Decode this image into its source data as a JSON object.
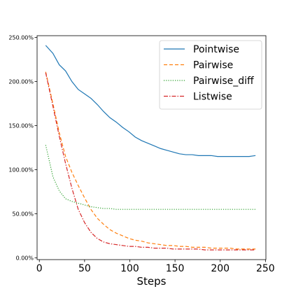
{
  "chart_data": {
    "type": "line",
    "title": "",
    "xlabel": "Steps",
    "ylabel": "",
    "xlim": [
      -2.5,
      250.5
    ],
    "ylim": [
      -2,
      252
    ],
    "xticks": [
      0,
      50,
      100,
      150,
      200,
      250
    ],
    "yticks": [
      0,
      50,
      100,
      150,
      200,
      250
    ],
    "ytick_labels": [
      "0.00%",
      "50.00%",
      "100.00%",
      "150.00%",
      "200.00%",
      "250.00%"
    ],
    "grid": false,
    "legend_position": "top-right",
    "series": [
      {
        "name": "Pointwise",
        "color": "#1f77b4",
        "dash": "solid",
        "x": [
          7,
          15,
          22,
          29,
          36,
          43,
          50,
          57,
          64,
          71,
          78,
          85,
          92,
          99,
          106,
          113,
          120,
          127,
          134,
          141,
          148,
          155,
          162,
          169,
          176,
          183,
          190,
          197,
          204,
          211,
          218,
          225,
          232,
          239
        ],
        "values": [
          241,
          232,
          219,
          212,
          200,
          191,
          186,
          181,
          174,
          166,
          159,
          154,
          148,
          143,
          137,
          133,
          130,
          127,
          124,
          122,
          120,
          118,
          117,
          117,
          116,
          116,
          116,
          115,
          115,
          115,
          115,
          115,
          115,
          116
        ]
      },
      {
        "name": "Pairwise",
        "color": "#ff7f0e",
        "dash": "dashed",
        "x": [
          7,
          15,
          22,
          29,
          36,
          43,
          50,
          57,
          64,
          71,
          78,
          85,
          92,
          99,
          106,
          113,
          120,
          127,
          134,
          141,
          148,
          155,
          162,
          169,
          176,
          183,
          190,
          197,
          204,
          211,
          218,
          225,
          232,
          239
        ],
        "values": [
          211,
          175,
          142,
          115,
          97,
          82,
          68,
          55,
          45,
          38,
          32,
          28,
          25,
          22,
          20,
          19,
          17,
          16,
          15,
          14,
          14,
          13,
          13,
          12,
          12,
          12,
          11,
          11,
          11,
          11,
          10,
          10,
          10,
          10
        ]
      },
      {
        "name": "Pairwise_diff",
        "color": "#2ca02c",
        "dash": "dotted",
        "x": [
          7,
          15,
          22,
          29,
          36,
          43,
          50,
          57,
          64,
          71,
          78,
          85,
          92,
          99,
          106,
          113,
          120,
          127,
          134,
          141,
          148,
          155,
          162,
          169,
          176,
          183,
          190,
          197,
          204,
          211,
          218,
          225,
          232,
          239
        ],
        "values": [
          128,
          92,
          76,
          67,
          64,
          62,
          60,
          58,
          57,
          56,
          56,
          55,
          55,
          55,
          55,
          55,
          55,
          55,
          55,
          55,
          55,
          55,
          55,
          55,
          55,
          55,
          55,
          55,
          55,
          55,
          55,
          55,
          55,
          55
        ]
      },
      {
        "name": "Listwise",
        "color": "#d62728",
        "dash": "dashdot",
        "x": [
          7,
          15,
          22,
          29,
          36,
          43,
          50,
          57,
          64,
          71,
          78,
          85,
          92,
          99,
          106,
          113,
          120,
          127,
          134,
          141,
          148,
          155,
          162,
          169,
          176,
          183,
          190,
          197,
          204,
          211,
          218,
          225,
          232,
          239
        ],
        "values": [
          210,
          172,
          138,
          107,
          79,
          55,
          40,
          29,
          22,
          18,
          16,
          15,
          14,
          13,
          13,
          12,
          12,
          11,
          11,
          11,
          10,
          10,
          10,
          10,
          10,
          9,
          9,
          9,
          9,
          9,
          9,
          9,
          9,
          9
        ]
      }
    ]
  }
}
